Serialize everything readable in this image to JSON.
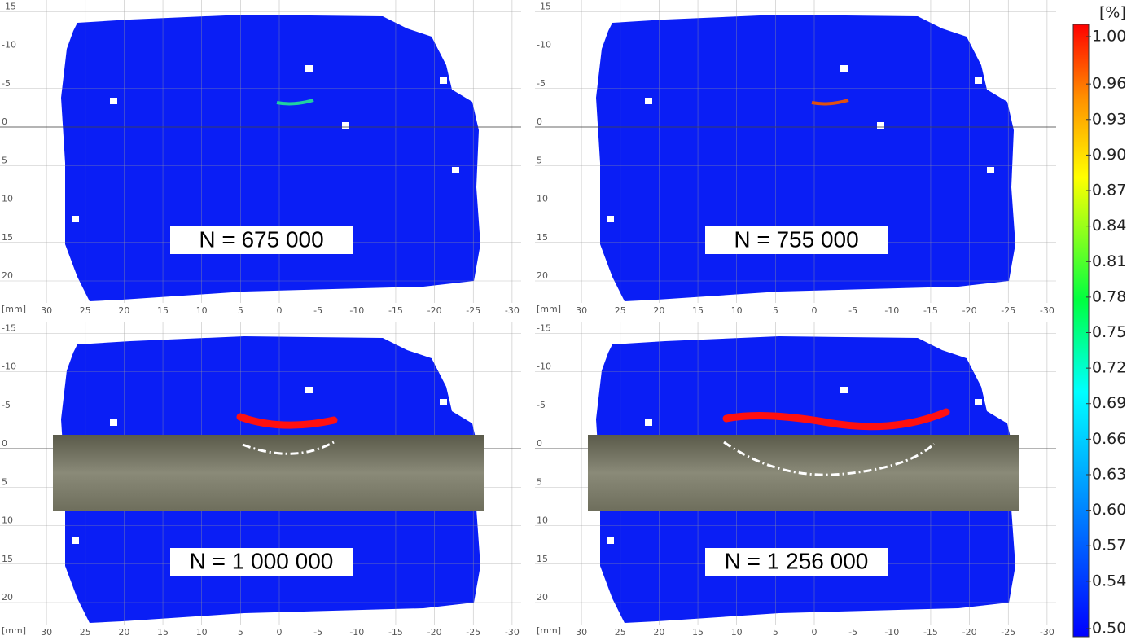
{
  "panels": [
    {
      "label": "N = 675 000",
      "x_unit": "[mm]",
      "xticks": [
        30,
        25,
        20,
        15,
        10,
        5,
        0,
        -5,
        -10,
        -15,
        -20,
        -25,
        -30
      ],
      "yticks": [
        -15,
        -10,
        -5,
        0,
        5,
        10,
        15,
        20
      ]
    },
    {
      "label": "N = 755 000",
      "x_unit": "[mm]",
      "xticks": [
        30,
        25,
        20,
        15,
        10,
        5,
        0,
        -5,
        -10,
        -15,
        -20,
        -25,
        -30
      ],
      "yticks": [
        -15,
        -10,
        -5,
        0,
        5,
        10,
        15,
        20
      ]
    },
    {
      "label": "N = 1 000 000",
      "x_unit": "[mm]",
      "xticks": [
        30,
        25,
        20,
        15,
        10,
        5,
        0,
        -5,
        -10,
        -15,
        -20,
        -25,
        -30
      ],
      "yticks": [
        -15,
        -10,
        -5,
        0,
        5,
        10,
        15,
        20
      ]
    },
    {
      "label": "N = 1 256 000",
      "x_unit": "[mm]",
      "xticks": [
        30,
        25,
        20,
        15,
        10,
        5,
        0,
        -5,
        -10,
        -15,
        -20,
        -25,
        -30
      ],
      "yticks": [
        -15,
        -10,
        -5,
        0,
        5,
        10,
        15,
        20
      ]
    }
  ],
  "colorbar": {
    "unit": "[%]",
    "lim": [
      0.5,
      1.0
    ],
    "ticks": [
      {
        "value": 1.0,
        "label": "1.00"
      },
      {
        "value": 0.96,
        "label": "0.96"
      },
      {
        "value": 0.93,
        "label": "0.93"
      },
      {
        "value": 0.9,
        "label": "0.90"
      },
      {
        "value": 0.87,
        "label": "0.87"
      },
      {
        "value": 0.84,
        "label": "0.84"
      },
      {
        "value": 0.81,
        "label": "0.81"
      },
      {
        "value": 0.78,
        "label": "0.78"
      },
      {
        "value": 0.75,
        "label": "0.75"
      },
      {
        "value": 0.72,
        "label": "0.72"
      },
      {
        "value": 0.69,
        "label": "0.69"
      },
      {
        "value": 0.66,
        "label": "0.66"
      },
      {
        "value": 0.63,
        "label": "0.63"
      },
      {
        "value": 0.6,
        "label": "0.60"
      },
      {
        "value": 0.57,
        "label": "0.57"
      },
      {
        "value": 0.54,
        "label": "0.54"
      },
      {
        "value": 0.5,
        "label": "0.50"
      }
    ]
  }
}
